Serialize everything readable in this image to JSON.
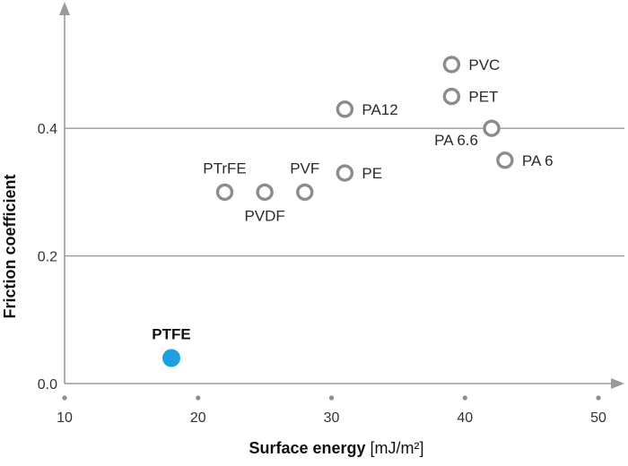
{
  "chart_data": {
    "type": "scatter",
    "title": "",
    "xlabel": "Surface energy",
    "xlabel_unit": "[mJ/m²]",
    "ylabel": "Friction coefficient",
    "xlim": [
      10,
      50
    ],
    "ylim": [
      0,
      0.5
    ],
    "x_ticks": [
      10,
      20,
      30,
      40,
      50
    ],
    "x_tick_labels": [
      "10",
      "20",
      "30",
      "40",
      "50"
    ],
    "y_ticks": [
      0,
      0.2,
      0.4
    ],
    "y_tick_labels": [
      "0.0",
      "0.2",
      "0.4"
    ],
    "grid": "horizontal at 0.2 and 0.4",
    "colors": {
      "marker": "#8c8c8c",
      "highlight": "#1ea0e0",
      "axis": "#9a9a9a"
    },
    "points": [
      {
        "label": "PTFE",
        "x": 18,
        "y": 0.04,
        "highlight": true,
        "label_pos": "above"
      },
      {
        "label": "PTrFE",
        "x": 22,
        "y": 0.3,
        "highlight": false,
        "label_pos": "above"
      },
      {
        "label": "PVDF",
        "x": 25,
        "y": 0.3,
        "highlight": false,
        "label_pos": "below"
      },
      {
        "label": "PVF",
        "x": 28,
        "y": 0.3,
        "highlight": false,
        "label_pos": "above"
      },
      {
        "label": "PE",
        "x": 31,
        "y": 0.33,
        "highlight": false,
        "label_pos": "right"
      },
      {
        "label": "PA12",
        "x": 31,
        "y": 0.43,
        "highlight": false,
        "label_pos": "right"
      },
      {
        "label": "PVC",
        "x": 39,
        "y": 0.5,
        "highlight": false,
        "label_pos": "right"
      },
      {
        "label": "PET",
        "x": 39,
        "y": 0.45,
        "highlight": false,
        "label_pos": "right"
      },
      {
        "label": "PA 6.6",
        "x": 42,
        "y": 0.4,
        "highlight": false,
        "label_pos": "below-left"
      },
      {
        "label": "PA 6",
        "x": 43,
        "y": 0.35,
        "highlight": false,
        "label_pos": "right"
      }
    ]
  }
}
